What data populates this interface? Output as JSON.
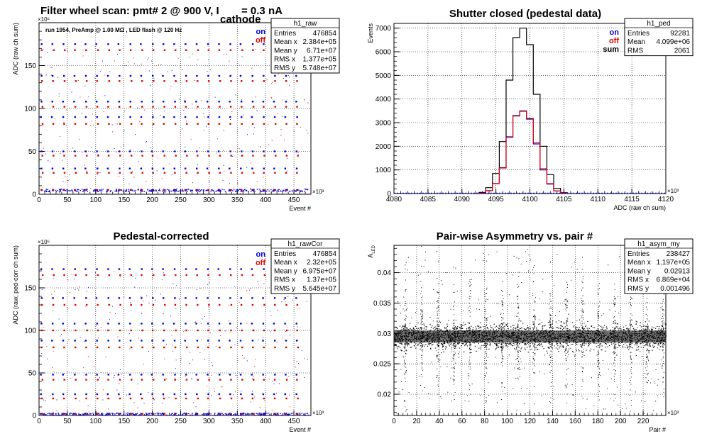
{
  "chart_data": [
    {
      "id": "raw",
      "type": "scatter",
      "title_main": "Filter wheel scan: pmt#   2 @   900 V, I",
      "title_sub": "cathode",
      "title_tail": " = 0.3 nA",
      "annotation": "run 1954, PreAmp @ 1.00 MΩ , LED flash @  120 Hz",
      "xlabel": "Event #",
      "ylabel": "ADC (raw ch sum)",
      "x_multiplier": "×10³",
      "y_multiplier": "×10⁶",
      "xlim": [
        0,
        480
      ],
      "ylim": [
        0,
        200
      ],
      "xticks": [
        "0",
        "50",
        "100",
        "150",
        "200",
        "250",
        "300",
        "350",
        "400",
        "450"
      ],
      "yticks": [
        "0",
        "50",
        "100",
        "150"
      ],
      "legend": [
        "on",
        "off"
      ],
      "grid": true,
      "levels_on": [
        5,
        30,
        50,
        90,
        108,
        138,
        175
      ],
      "levels_off": [
        5,
        25,
        45,
        82,
        102,
        132,
        168
      ],
      "stats": {
        "name": "h1_raw",
        "rows": [
          [
            "Entries",
            "476854"
          ],
          [
            "Mean x",
            "2.384e+05"
          ],
          [
            "Mean y",
            "6.71e+07"
          ],
          [
            "RMS x",
            "1.377e+05"
          ],
          [
            "RMS y",
            "5.748e+07"
          ]
        ]
      }
    },
    {
      "id": "ped",
      "type": "line",
      "title": "Shutter closed (pedestal data)",
      "xlabel": "ADC (raw ch sum)",
      "ylabel": "Events",
      "x_multiplier": "×10³",
      "xlim": [
        4080,
        4120
      ],
      "ylim": [
        0,
        7200
      ],
      "xticks": [
        "4080",
        "4085",
        "4090",
        "4095",
        "4100",
        "4105",
        "4110",
        "4115",
        "4120"
      ],
      "yticks": [
        "0",
        "1000",
        "2000",
        "3000",
        "4000",
        "5000",
        "6000",
        "7000"
      ],
      "legend": [
        "on",
        "off",
        "sum"
      ],
      "grid": true,
      "bins_x": [
        4093,
        4094,
        4095,
        4096,
        4097,
        4098,
        4099,
        4100,
        4101,
        4102,
        4103,
        4104,
        4105
      ],
      "sum_values": [
        50,
        250,
        850,
        2200,
        4800,
        6600,
        7000,
        6300,
        4200,
        2000,
        800,
        220,
        40
      ],
      "on_values": [
        25,
        125,
        425,
        1100,
        2400,
        3300,
        3500,
        3150,
        2100,
        1000,
        400,
        110,
        20
      ],
      "off_values": [
        25,
        120,
        420,
        1080,
        2380,
        3280,
        3480,
        3180,
        2150,
        1050,
        420,
        115,
        20
      ],
      "stats": {
        "name": "h1_ped",
        "rows": [
          [
            "Entries",
            "92281"
          ],
          [
            "Mean",
            "4.099e+06"
          ],
          [
            "RMS",
            "2061"
          ]
        ]
      }
    },
    {
      "id": "rawCor",
      "type": "scatter",
      "title": "Pedestal-corrected",
      "xlabel": "Event #",
      "ylabel": "ADC (raw, ped-corr ch sum)",
      "x_multiplier": "×10³",
      "y_multiplier": "×10⁶",
      "xlim": [
        0,
        480
      ],
      "ylim": [
        0,
        200
      ],
      "xticks": [
        "0",
        "50",
        "100",
        "150",
        "200",
        "250",
        "300",
        "350",
        "400",
        "450"
      ],
      "yticks": [
        "0",
        "50",
        "100",
        "150"
      ],
      "legend": [
        "on",
        "off"
      ],
      "grid": true,
      "levels_on": [
        2,
        25,
        48,
        88,
        108,
        138,
        172
      ],
      "levels_off": [
        2,
        20,
        42,
        80,
        100,
        130,
        165
      ],
      "stats": {
        "name": "h1_rawCor",
        "rows": [
          [
            "Entries",
            "476854"
          ],
          [
            "Mean x",
            "2.32e+05"
          ],
          [
            "Mean y",
            "6.975e+07"
          ],
          [
            "RMS x",
            "1.37e+05"
          ],
          [
            "RMS y",
            "5.645e+07"
          ]
        ]
      }
    },
    {
      "id": "asym",
      "type": "scatter",
      "title": "Pair-wise Asymmetry vs. pair #",
      "xlabel": "Pair #",
      "ylabel": "A",
      "ylabel_sub": "LED",
      "x_multiplier": "×10³",
      "xlim": [
        0,
        240
      ],
      "ylim": [
        0.0165,
        0.0445
      ],
      "xticks": [
        "0",
        "20",
        "40",
        "60",
        "80",
        "100",
        "120",
        "140",
        "160",
        "180",
        "200",
        "220"
      ],
      "yticks": [
        "0.02",
        "0.025",
        "0.03",
        "0.035",
        "0.04"
      ],
      "band_center": 0.0295,
      "band_halfwidth": 0.0018,
      "grid": true,
      "stats": {
        "name": "h1_asym_my",
        "rows": [
          [
            "Entries",
            "238427"
          ],
          [
            "Mean x",
            "1.197e+05"
          ],
          [
            "Mean y",
            "0.02913"
          ],
          [
            "RMS x",
            "6.869e+04"
          ],
          [
            "RMS y",
            "0.001496"
          ]
        ]
      }
    }
  ]
}
